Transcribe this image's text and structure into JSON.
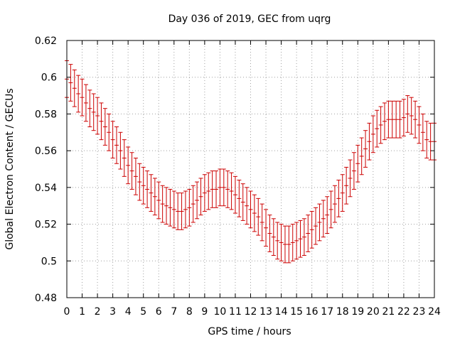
{
  "chart_data": {
    "type": "scatter",
    "title": "Day 036 of 2019, GEC from uqrg",
    "xlabel": "GPS time / hours",
    "ylabel": "Global Electron Content / GECUs",
    "xlim": [
      0,
      24
    ],
    "ylim": [
      0.48,
      0.62
    ],
    "x_ticks": [
      0,
      1,
      2,
      3,
      4,
      5,
      6,
      7,
      8,
      9,
      10,
      11,
      12,
      13,
      14,
      15,
      16,
      17,
      18,
      19,
      20,
      21,
      22,
      23,
      24
    ],
    "x_tick_labels": [
      "0",
      "1",
      "2",
      "3",
      "4",
      "5",
      "6",
      "7",
      "8",
      "9",
      "10",
      "11",
      "12",
      "13",
      "14",
      "15",
      "16",
      "17",
      "18",
      "19",
      "20",
      "21",
      "22",
      "23",
      "24"
    ],
    "y_ticks": [
      0.48,
      0.5,
      0.52,
      0.54,
      0.56,
      0.58,
      0.6,
      0.62
    ],
    "y_tick_labels": [
      "0.48",
      "0.5",
      "0.52",
      "0.54",
      "0.56",
      "0.58",
      "0.6",
      "0.62"
    ],
    "grid": true,
    "error_bar_halfwidth": 0.01,
    "series": [
      {
        "name": "GEC",
        "color": "#cc0000",
        "x": [
          0,
          0.25,
          0.5,
          0.75,
          1,
          1.25,
          1.5,
          1.75,
          2,
          2.25,
          2.5,
          2.75,
          3,
          3.25,
          3.5,
          3.75,
          4,
          4.25,
          4.5,
          4.75,
          5,
          5.25,
          5.5,
          5.75,
          6,
          6.25,
          6.5,
          6.75,
          7,
          7.25,
          7.5,
          7.75,
          8,
          8.25,
          8.5,
          8.75,
          9,
          9.25,
          9.5,
          9.75,
          10,
          10.25,
          10.5,
          10.75,
          11,
          11.25,
          11.5,
          11.75,
          12,
          12.25,
          12.5,
          12.75,
          13,
          13.25,
          13.5,
          13.75,
          14,
          14.25,
          14.5,
          14.75,
          15,
          15.25,
          15.5,
          15.75,
          16,
          16.25,
          16.5,
          16.75,
          17,
          17.25,
          17.5,
          17.75,
          18,
          18.25,
          18.5,
          18.75,
          19,
          19.25,
          19.5,
          19.75,
          20,
          20.25,
          20.5,
          20.75,
          21,
          21.25,
          21.5,
          21.75,
          22,
          22.25,
          22.5,
          22.75,
          23,
          23.25,
          23.5,
          23.75,
          24
        ],
        "y": [
          0.599,
          0.597,
          0.594,
          0.591,
          0.589,
          0.586,
          0.583,
          0.581,
          0.579,
          0.576,
          0.573,
          0.57,
          0.566,
          0.563,
          0.56,
          0.556,
          0.552,
          0.549,
          0.546,
          0.543,
          0.541,
          0.539,
          0.537,
          0.535,
          0.533,
          0.531,
          0.53,
          0.529,
          0.528,
          0.527,
          0.527,
          0.528,
          0.529,
          0.531,
          0.533,
          0.535,
          0.537,
          0.538,
          0.539,
          0.539,
          0.54,
          0.54,
          0.539,
          0.538,
          0.536,
          0.534,
          0.532,
          0.53,
          0.528,
          0.526,
          0.524,
          0.521,
          0.518,
          0.515,
          0.513,
          0.511,
          0.51,
          0.509,
          0.509,
          0.51,
          0.511,
          0.512,
          0.513,
          0.515,
          0.517,
          0.519,
          0.521,
          0.523,
          0.525,
          0.528,
          0.531,
          0.534,
          0.537,
          0.541,
          0.545,
          0.549,
          0.553,
          0.557,
          0.561,
          0.565,
          0.569,
          0.572,
          0.574,
          0.576,
          0.577,
          0.577,
          0.577,
          0.577,
          0.578,
          0.58,
          0.579,
          0.577,
          0.574,
          0.57,
          0.566,
          0.565,
          0.565
        ]
      }
    ]
  }
}
